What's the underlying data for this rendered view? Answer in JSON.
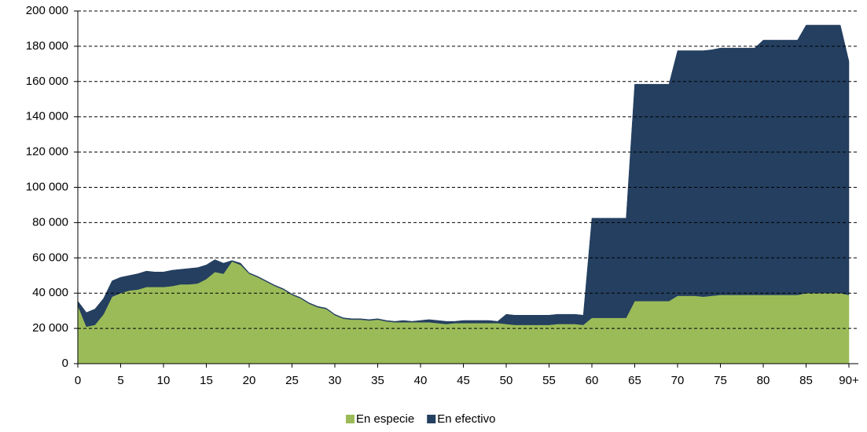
{
  "chart_data": {
    "type": "stacked_area",
    "x": [
      0,
      1,
      2,
      3,
      4,
      5,
      6,
      7,
      8,
      9,
      10,
      11,
      12,
      13,
      14,
      15,
      16,
      17,
      18,
      19,
      20,
      21,
      22,
      23,
      24,
      25,
      26,
      27,
      28,
      29,
      30,
      31,
      32,
      33,
      34,
      35,
      36,
      37,
      38,
      39,
      40,
      41,
      42,
      43,
      44,
      45,
      46,
      47,
      48,
      49,
      50,
      51,
      52,
      53,
      54,
      55,
      56,
      57,
      58,
      59,
      60,
      61,
      62,
      63,
      64,
      65,
      66,
      67,
      68,
      69,
      70,
      71,
      72,
      73,
      74,
      75,
      76,
      77,
      78,
      79,
      80,
      81,
      82,
      83,
      84,
      85,
      86,
      87,
      88,
      89,
      90
    ],
    "series": [
      {
        "name": "En especie",
        "color": "#9bbb59",
        "values": [
          33000,
          21000,
          22000,
          28000,
          38000,
          40000,
          41500,
          42000,
          43500,
          43500,
          43500,
          44000,
          45000,
          45000,
          45500,
          48000,
          52000,
          51000,
          58000,
          56000,
          51000,
          49000,
          46500,
          44000,
          42000,
          39000,
          37000,
          34000,
          32000,
          31000,
          27500,
          25500,
          25000,
          25000,
          24500,
          25000,
          24000,
          23500,
          23500,
          23500,
          23500,
          23500,
          23000,
          22500,
          23000,
          23000,
          23000,
          23000,
          23000,
          23000,
          22500,
          22000,
          22000,
          22000,
          22000,
          22000,
          22500,
          22500,
          22500,
          22000,
          26000,
          26000,
          26000,
          26000,
          26000,
          35500,
          35500,
          35500,
          35500,
          35500,
          38500,
          38500,
          38500,
          38000,
          38500,
          39000,
          39000,
          39000,
          39000,
          39000,
          39000,
          39000,
          39000,
          39000,
          39000,
          40000,
          40000,
          40000,
          40000,
          40000,
          39000
        ]
      },
      {
        "name": "En efectivo",
        "color": "#243f60",
        "values": [
          2500,
          8000,
          9000,
          9000,
          9000,
          9000,
          8500,
          9000,
          9000,
          8500,
          8500,
          9000,
          8500,
          9000,
          9000,
          8000,
          7000,
          6000,
          500,
          1000,
          500,
          500,
          500,
          500,
          500,
          500,
          500,
          500,
          500,
          500,
          500,
          500,
          500,
          500,
          500,
          500,
          500,
          500,
          1000,
          500,
          1000,
          1500,
          1500,
          1500,
          1000,
          1500,
          1500,
          1500,
          1500,
          1000,
          5500,
          5500,
          5500,
          5500,
          5500,
          5500,
          5500,
          5500,
          5500,
          5500,
          56500,
          56500,
          56500,
          56500,
          56500,
          123000,
          123000,
          123000,
          123000,
          123000,
          139000,
          139000,
          139000,
          139500,
          139500,
          140000,
          140000,
          140000,
          140000,
          140000,
          144500,
          144500,
          144500,
          144500,
          144500,
          152000,
          152000,
          152000,
          152000,
          152000,
          132500
        ]
      }
    ],
    "xlim": [
      0,
      90
    ],
    "xticks": [
      0,
      5,
      10,
      15,
      20,
      25,
      30,
      35,
      40,
      45,
      50,
      55,
      60,
      65,
      70,
      75,
      80,
      85,
      {
        "value": 90,
        "label": "90+"
      }
    ],
    "ylim": [
      0,
      200000
    ],
    "yticks": [
      0,
      {
        "value": 20000,
        "label": "20 000"
      },
      {
        "value": 40000,
        "label": "40 000"
      },
      {
        "value": 60000,
        "label": "60 000"
      },
      {
        "value": 80000,
        "label": "80 000"
      },
      {
        "value": 100000,
        "label": "100 000"
      },
      {
        "value": 120000,
        "label": "120 000"
      },
      {
        "value": 140000,
        "label": "140 000"
      },
      {
        "value": 160000,
        "label": "160 000"
      },
      {
        "value": 180000,
        "label": "180 000"
      },
      {
        "value": 200000,
        "label": "200 000"
      }
    ],
    "grid": true,
    "legend": "bottom"
  }
}
